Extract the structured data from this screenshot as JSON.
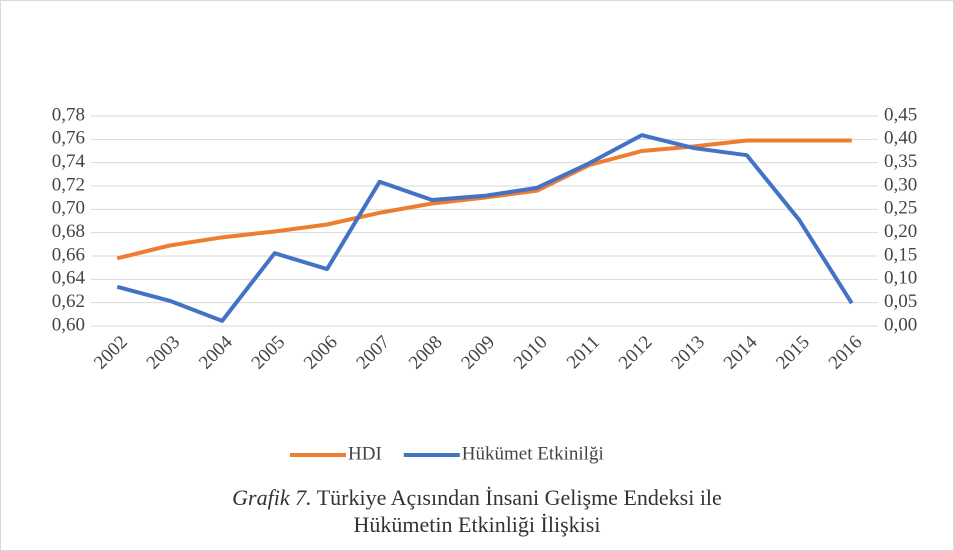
{
  "chart_data": {
    "type": "line",
    "categories": [
      "2002",
      "2003",
      "2004",
      "2005",
      "2006",
      "2007",
      "2008",
      "2009",
      "2010",
      "2011",
      "2012",
      "2013",
      "2014",
      "2015",
      "2016"
    ],
    "series": [
      {
        "name": "HDI",
        "color": "#ed7d31",
        "values": [
          0.658,
          0.669,
          0.676,
          0.681,
          0.687,
          0.697,
          0.705,
          0.71,
          0.716,
          0.738,
          0.75,
          0.754,
          0.759,
          0.759,
          0.759
        ]
      },
      {
        "name": "Hükümet Etkinilği",
        "color": "#4472c4",
        "axis": "y2",
        "values": [
          0.084,
          0.054,
          0.011,
          0.156,
          0.122,
          0.309,
          0.27,
          0.279,
          0.296,
          0.349,
          0.409,
          0.381,
          0.366,
          0.227,
          0.049
        ]
      }
    ],
    "ylim": [
      0.6,
      0.78
    ],
    "yticks": [
      {
        "value": 0.6,
        "label": "0,60"
      },
      {
        "value": 0.62,
        "label": "0,62"
      },
      {
        "value": 0.64,
        "label": "0,64"
      },
      {
        "value": 0.66,
        "label": "0,66"
      },
      {
        "value": 0.68,
        "label": "0,68"
      },
      {
        "value": 0.7,
        "label": "0,70"
      },
      {
        "value": 0.72,
        "label": "0,72"
      },
      {
        "value": 0.74,
        "label": "0,74"
      },
      {
        "value": 0.76,
        "label": "0,76"
      },
      {
        "value": 0.78,
        "label": "0,78"
      }
    ],
    "y2lim": [
      0.0,
      0.45
    ],
    "y2ticks": [
      {
        "value": 0.0,
        "label": "0,00"
      },
      {
        "value": 0.05,
        "label": "0,05"
      },
      {
        "value": 0.1,
        "label": "0,10"
      },
      {
        "value": 0.15,
        "label": "0,15"
      },
      {
        "value": 0.2,
        "label": "0,20"
      },
      {
        "value": 0.25,
        "label": "0,25"
      },
      {
        "value": 0.3,
        "label": "0,30"
      },
      {
        "value": 0.35,
        "label": "0,35"
      },
      {
        "value": 0.4,
        "label": "0,40"
      },
      {
        "value": 0.45,
        "label": "0,45"
      }
    ],
    "grid": true,
    "legend": "bottom",
    "caption": {
      "label": "Grafik 7.",
      "line1": "Türkiye Açısından İnsani Gelişme Endeksi ile",
      "line2": "Hükümetin Etkinliği İlişkisi"
    }
  }
}
